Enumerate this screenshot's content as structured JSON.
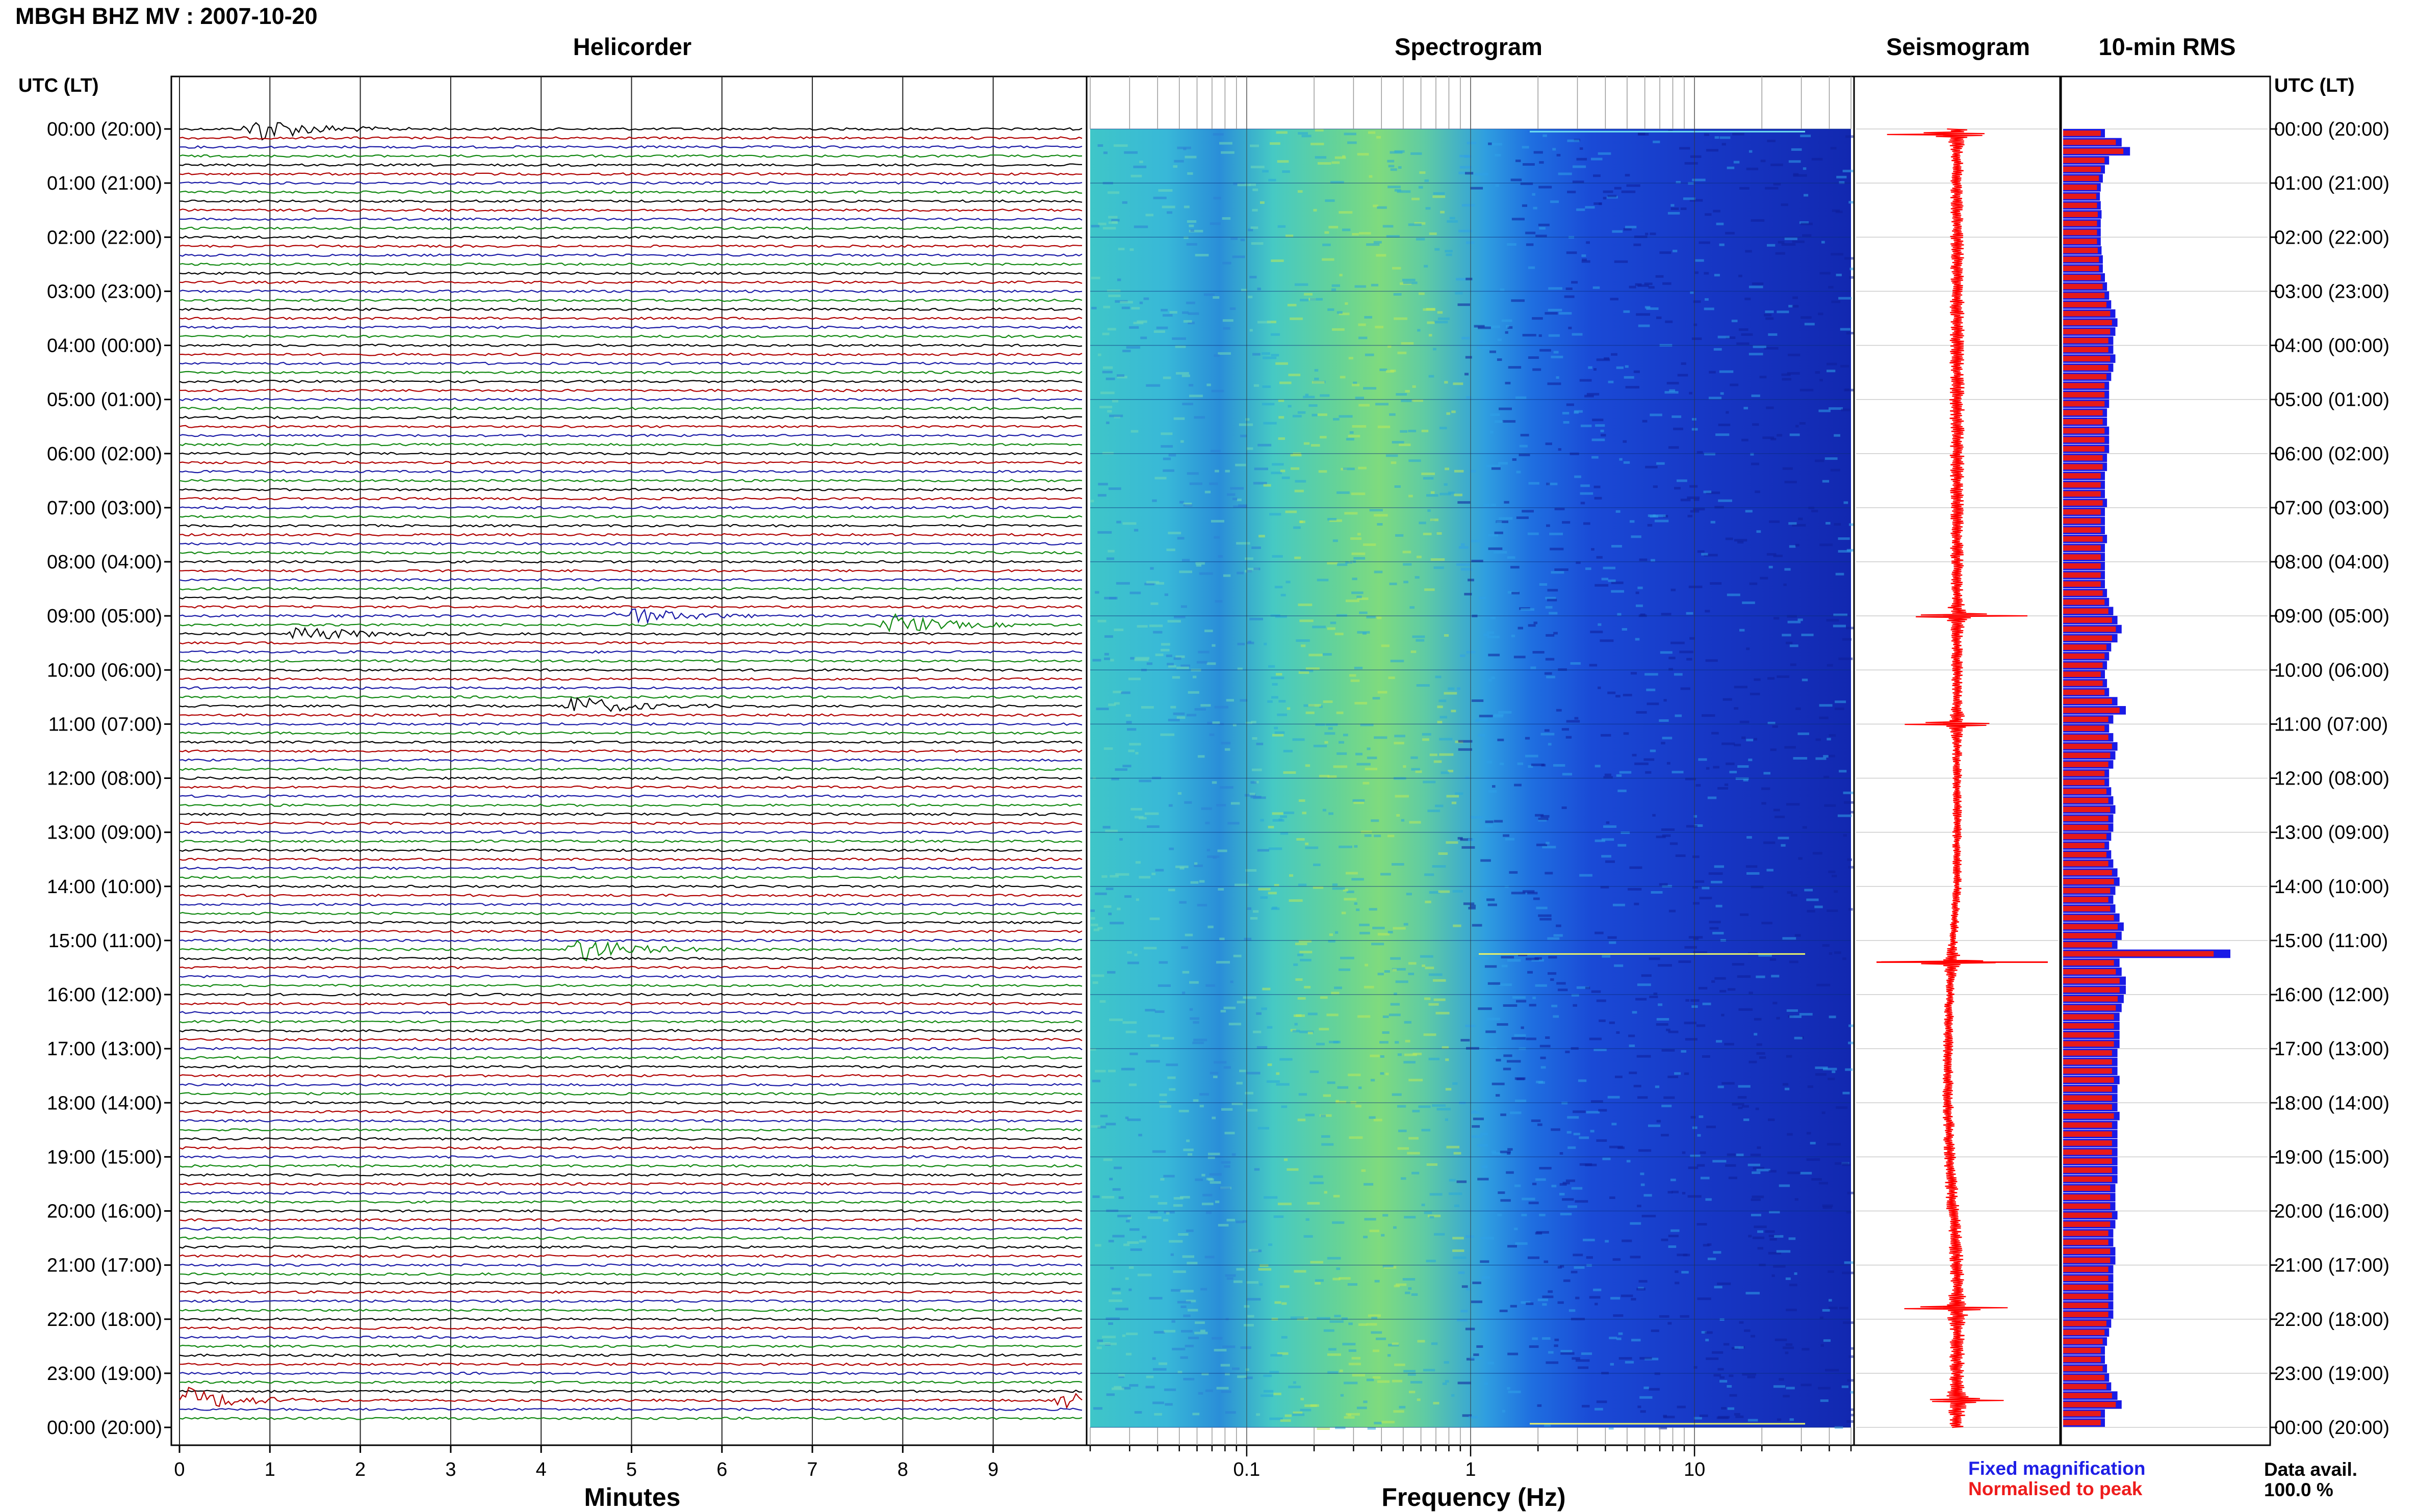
{
  "title": "MBGH BHZ MV : 2007-10-20",
  "panels": {
    "helicorder": "Helicorder",
    "spectrogram": "Spectrogram",
    "seismogram": "Seismogram",
    "rms": "10-min RMS"
  },
  "axis_labels": {
    "helicorder_x": "Minutes",
    "spectrogram_x": "Frequency (Hz)",
    "time_header": "UTC (LT)"
  },
  "time_labels": [
    "00:00 (20:00)",
    "01:00 (21:00)",
    "02:00 (22:00)",
    "03:00 (23:00)",
    "04:00 (00:00)",
    "05:00 (01:00)",
    "06:00 (02:00)",
    "07:00 (03:00)",
    "08:00 (04:00)",
    "09:00 (05:00)",
    "10:00 (06:00)",
    "11:00 (07:00)",
    "12:00 (08:00)",
    "13:00 (09:00)",
    "14:00 (10:00)",
    "15:00 (11:00)",
    "16:00 (12:00)",
    "17:00 (13:00)",
    "18:00 (14:00)",
    "19:00 (15:00)",
    "20:00 (16:00)",
    "21:00 (17:00)",
    "22:00 (18:00)",
    "23:00 (19:00)",
    "00:00 (20:00)"
  ],
  "minute_ticks": [
    "0",
    "1",
    "2",
    "3",
    "4",
    "5",
    "6",
    "7",
    "8",
    "9"
  ],
  "freq_ticks": [
    "0.1",
    "1",
    "10"
  ],
  "legend": {
    "fixed": "Fixed magnification",
    "peak": "Normalised to peak"
  },
  "availability": {
    "label": "Data avail.",
    "value": "100.0 %"
  },
  "colors": {
    "trace_cycle": [
      "#000000",
      "#b00000",
      "#1a1aa6",
      "#118811"
    ],
    "rms_fixed": "#1a1ae6",
    "rms_peak": "#e61a1a",
    "seismogram": "#ff0000"
  },
  "chart_data": [
    {
      "type": "line",
      "name": "helicorder",
      "x_unit": "minutes",
      "xlim": [
        0,
        10
      ],
      "rows_per_hour": 6,
      "rows": 144,
      "events": [
        {
          "row": 0,
          "minute": 0.85,
          "amplitude": 1.0
        },
        {
          "row": 54,
          "minute": 4.9,
          "amplitude": 0.8
        },
        {
          "row": 55,
          "minute": 7.9,
          "amplitude": 0.8
        },
        {
          "row": 56,
          "minute": 1.35,
          "amplitude": 0.6
        },
        {
          "row": 64,
          "minute": 4.35,
          "amplitude": 0.8
        },
        {
          "row": 91,
          "minute": 4.4,
          "amplitude": 1.0
        },
        {
          "row": 141,
          "minute": 0.1,
          "amplitude": 0.9
        },
        {
          "row": 141,
          "minute": 9.8,
          "amplitude": 0.7
        }
      ]
    },
    {
      "type": "heatmap",
      "name": "spectrogram",
      "x_scale": "log",
      "xlim": [
        0.02,
        50
      ],
      "dominant_band_hz": [
        0.3,
        0.6
      ],
      "time_rows": 144
    },
    {
      "type": "line",
      "name": "seismogram",
      "rows": 144,
      "spikes_at_hours": [
        0.1,
        9.0,
        11.0,
        15.4,
        21.8,
        23.5
      ]
    },
    {
      "type": "bar",
      "name": "10-min RMS",
      "rows": 144,
      "rms_fixed": [
        1.0,
        1.4,
        1.6,
        1.1,
        1.0,
        0.95,
        0.9,
        0.88,
        0.9,
        0.92,
        0.9,
        0.9,
        0.9,
        0.92,
        0.95,
        0.95,
        1.0,
        1.05,
        1.1,
        1.15,
        1.25,
        1.3,
        1.25,
        1.2,
        1.2,
        1.25,
        1.2,
        1.15,
        1.1,
        1.1,
        1.1,
        1.05,
        1.05,
        1.1,
        1.1,
        1.1,
        1.05,
        1.05,
        1.0,
        1.0,
        1.0,
        1.05,
        1.0,
        1.0,
        1.0,
        1.05,
        1.0,
        1.0,
        1.0,
        1.0,
        1.0,
        1.05,
        1.1,
        1.2,
        1.3,
        1.4,
        1.3,
        1.15,
        1.1,
        1.05,
        1.0,
        1.05,
        1.1,
        1.3,
        1.5,
        1.2,
        1.1,
        1.2,
        1.3,
        1.25,
        1.2,
        1.1,
        1.1,
        1.15,
        1.2,
        1.25,
        1.2,
        1.2,
        1.15,
        1.1,
        1.15,
        1.2,
        1.3,
        1.35,
        1.25,
        1.2,
        1.25,
        1.35,
        1.45,
        1.4,
        1.3,
        4.0,
        1.35,
        1.4,
        1.5,
        1.5,
        1.45,
        1.4,
        1.35,
        1.35,
        1.35,
        1.35,
        1.3,
        1.3,
        1.3,
        1.35,
        1.3,
        1.3,
        1.3,
        1.35,
        1.3,
        1.3,
        1.3,
        1.3,
        1.3,
        1.3,
        1.3,
        1.25,
        1.25,
        1.25,
        1.3,
        1.25,
        1.2,
        1.2,
        1.25,
        1.25,
        1.2,
        1.2,
        1.2,
        1.2,
        1.2,
        1.2,
        1.15,
        1.1,
        1.05,
        1.0,
        1.0,
        1.05,
        1.1,
        1.15,
        1.3,
        1.4,
        1.0,
        1.0
      ],
      "peak_index": 91
    }
  ]
}
